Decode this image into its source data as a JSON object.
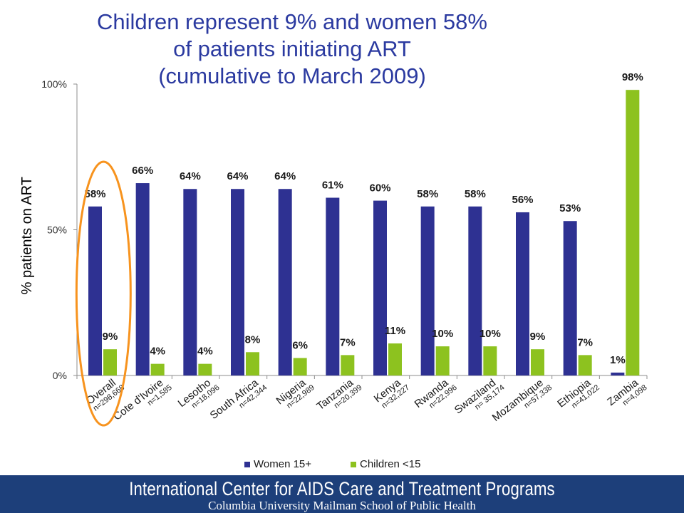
{
  "title_lines": [
    "Children represent 9% and women 58%",
    "of patients initiating ART",
    "(cumulative to March 2009)"
  ],
  "footer": {
    "line1": "International Center for AIDS Care and Treatment Programs",
    "line2": "Columbia University Mailman School of Public Health"
  },
  "colors": {
    "women": "#2e3192",
    "children": "#8dc21f",
    "highlight": "#f7931e",
    "title": "#2b3aa0"
  },
  "chart_data": {
    "type": "bar",
    "title": "Children represent 9% and women 58% of patients initiating ART (cumulative to March 2009)",
    "ylabel": "% patients on ART",
    "ylim": [
      0,
      100
    ],
    "yticks": [
      {
        "value": 0,
        "label": "0%"
      },
      {
        "value": 50,
        "label": "50%"
      },
      {
        "value": 100,
        "label": "100%"
      }
    ],
    "categories": [
      {
        "name": "Overall",
        "n": "n=298,668"
      },
      {
        "name": "Cote d'Ivoire",
        "n": "n=1,585"
      },
      {
        "name": "Lesotho",
        "n": "n=18,096"
      },
      {
        "name": "South Africa",
        "n": "n=42,344"
      },
      {
        "name": "Nigeria",
        "n": "n=22,989"
      },
      {
        "name": "Tanzania",
        "n": "n=20,399"
      },
      {
        "name": "Kenya",
        "n": "n=32,227"
      },
      {
        "name": "Rwanda",
        "n": "n=22,996"
      },
      {
        "name": "Swaziland",
        "n": "n= 35,174"
      },
      {
        "name": "Mozambique",
        "n": "n=57,338"
      },
      {
        "name": "Ethiopia",
        "n": "n=41,022"
      },
      {
        "name": "Zambia",
        "n": "n=4,098"
      }
    ],
    "series": [
      {
        "name": "Women 15+",
        "values": [
          58,
          66,
          64,
          64,
          64,
          61,
          60,
          58,
          58,
          56,
          53,
          1
        ],
        "labels": [
          "58%",
          "66%",
          "64%",
          "64%",
          "64%",
          "61%",
          "60%",
          "58%",
          "58%",
          "56%",
          "53%",
          "1%"
        ]
      },
      {
        "name": "Children <15",
        "values": [
          9,
          4,
          4,
          8,
          6,
          7,
          11,
          10,
          10,
          9,
          7,
          98
        ],
        "labels": [
          "9%",
          "4%",
          "4%",
          "8%",
          "6%",
          "7%",
          "11%",
          "10%",
          "10%",
          "9%",
          "7%",
          "98%"
        ]
      }
    ],
    "legend": "bottom",
    "grid": false,
    "highlighted_category": "Overall"
  }
}
